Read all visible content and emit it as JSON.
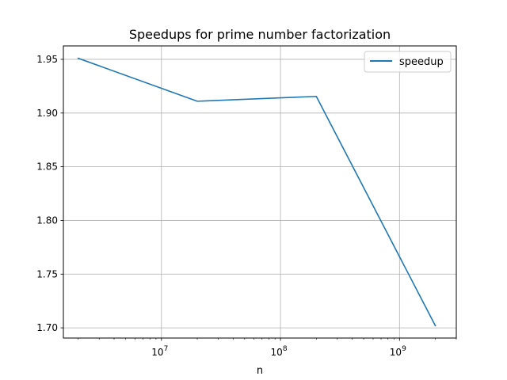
{
  "chart_data": {
    "type": "line",
    "title": "Speedups for prime number factorization",
    "xlabel": "n",
    "ylabel": "",
    "xscale": "log",
    "xlim": [
      1500000,
      3000000000
    ],
    "ylim": [
      1.6905,
      1.9625
    ],
    "x_ticks": [
      {
        "base": "10",
        "exp": "7",
        "value": 10000000
      },
      {
        "base": "10",
        "exp": "8",
        "value": 100000000
      },
      {
        "base": "10",
        "exp": "9",
        "value": 1000000000
      }
    ],
    "y_ticks": [
      "1.70",
      "1.75",
      "1.80",
      "1.85",
      "1.90",
      "1.95"
    ],
    "grid": true,
    "legend_position": "top-right",
    "series": [
      {
        "name": "speedup",
        "color": "#1f77b4",
        "x": [
          2000000,
          20000000,
          200000000,
          2000000000
        ],
        "y": [
          1.951,
          1.911,
          1.9155,
          1.702
        ]
      }
    ]
  }
}
